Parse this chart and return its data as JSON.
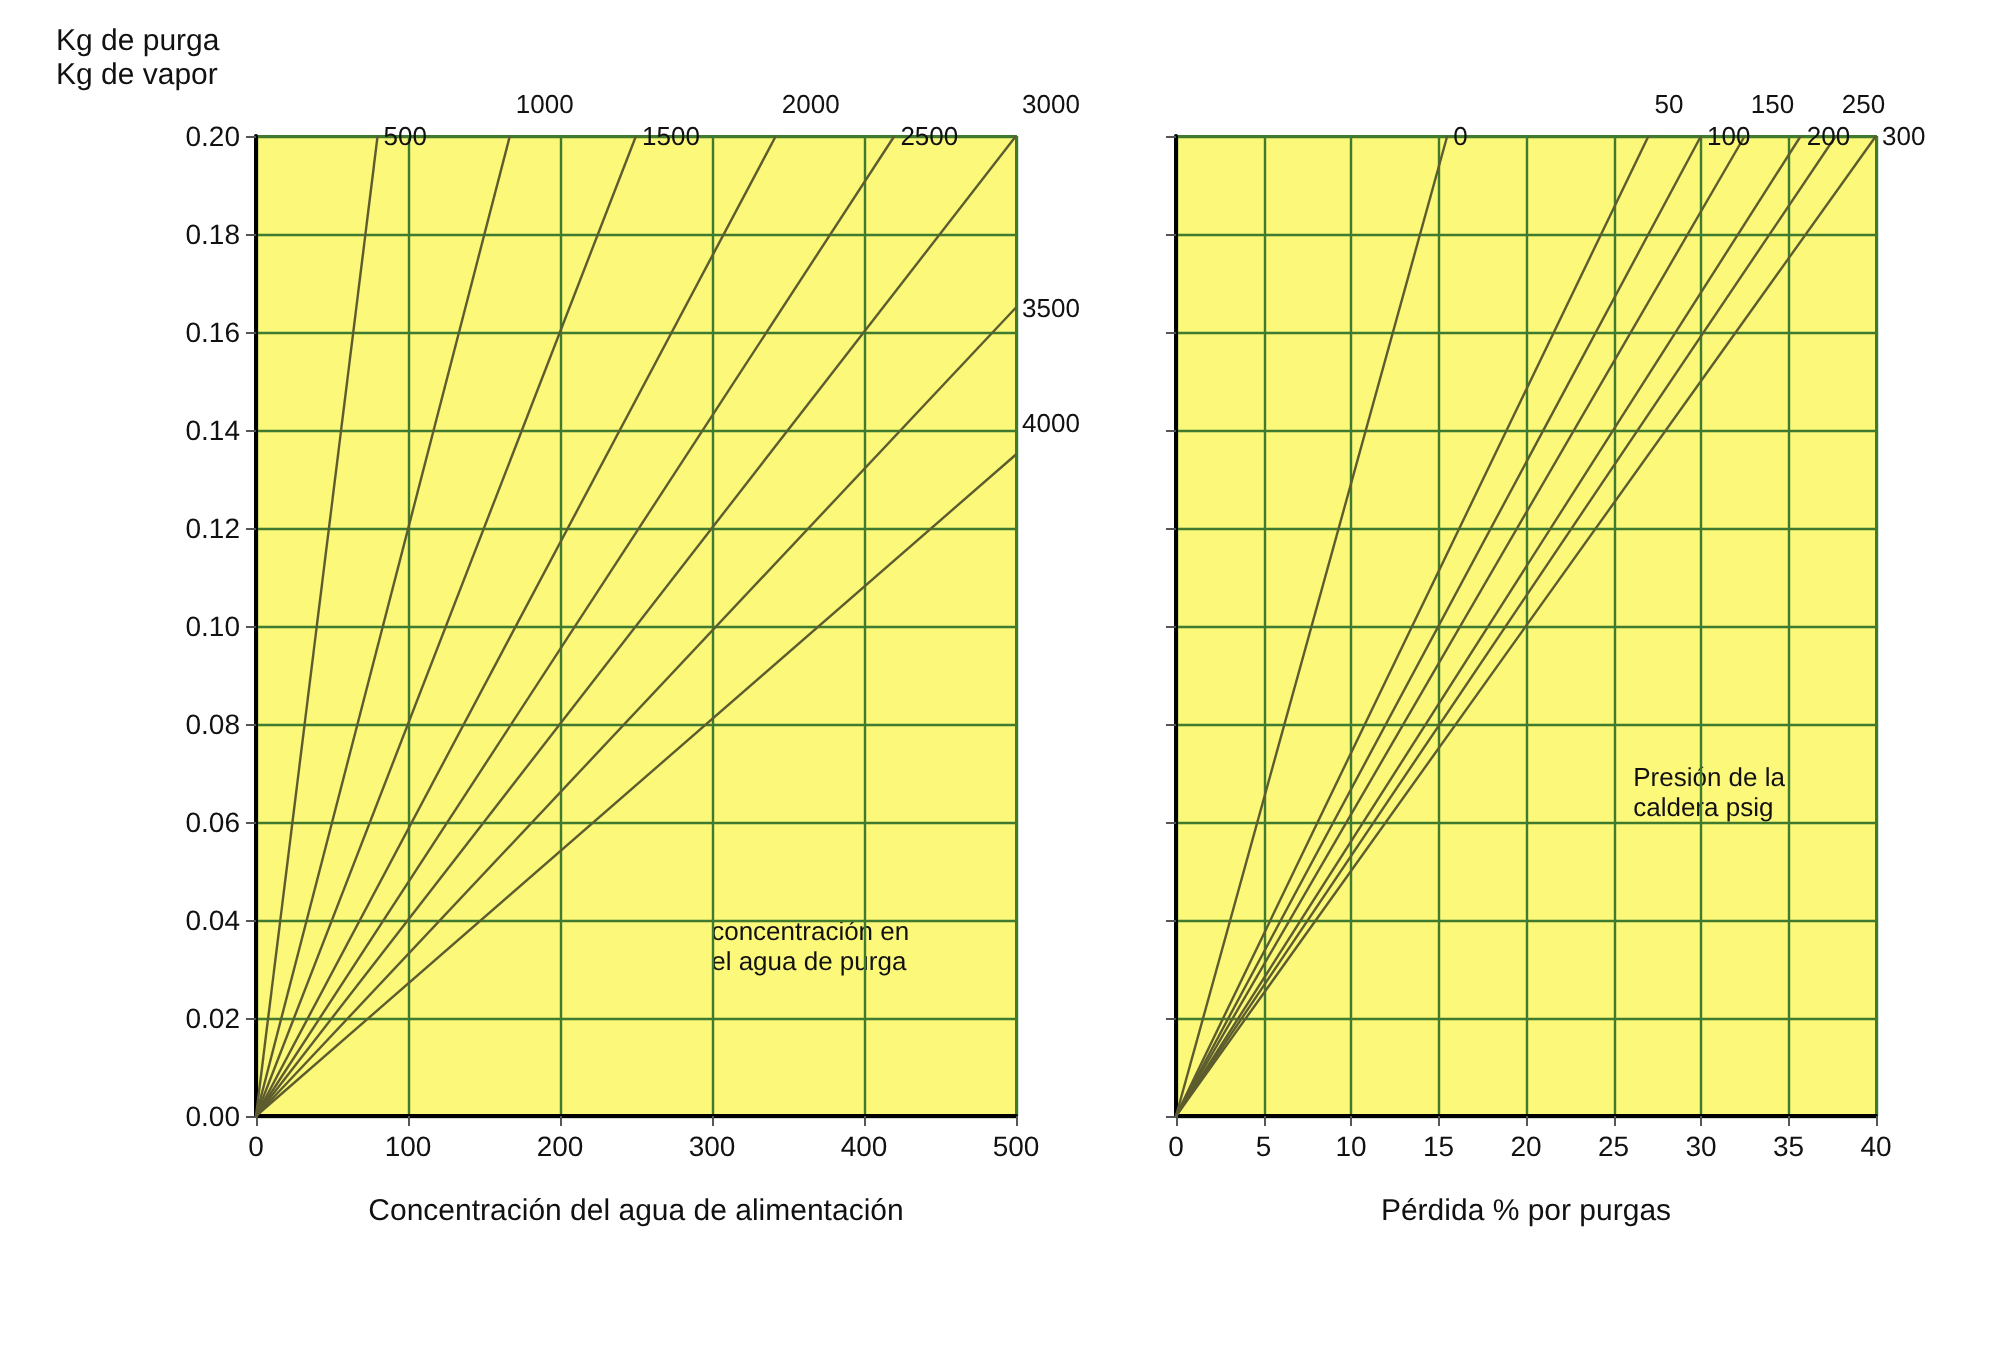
{
  "chart_data": [
    {
      "type": "line",
      "ylabel": "Kg de purga\nKg de vapor",
      "xlabel": "Concentración del agua de alimentación",
      "xlim": [
        0,
        500
      ],
      "xticks": [
        0,
        100,
        200,
        300,
        400,
        500
      ],
      "ylim": [
        0,
        0.2
      ],
      "yticks": [
        {
          "value": 0,
          "label": "0.00"
        },
        {
          "value": 0.02,
          "label": "0.02"
        },
        {
          "value": 0.04,
          "label": "0.04"
        },
        {
          "value": 0.06,
          "label": "0.06"
        },
        {
          "value": 0.08,
          "label": "0.08"
        },
        {
          "value": 0.1,
          "label": "0.10"
        },
        {
          "value": 0.12,
          "label": "0.12"
        },
        {
          "value": 0.14,
          "label": "0.14"
        },
        {
          "value": 0.16,
          "label": "0.16"
        },
        {
          "value": 0.18,
          "label": "0.18"
        },
        {
          "value": 0.2,
          "label": "0.20"
        }
      ],
      "grid": true,
      "marker": "none",
      "annotations": [
        "concentración en\nel agua de purga"
      ],
      "series": [
        {
          "name": "500",
          "color": "#5c5c2e",
          "x": [
            0,
            80
          ],
          "values": [
            0,
            0.2
          ]
        },
        {
          "name": "1000",
          "color": "#5c5c2e",
          "x": [
            0,
            167
          ],
          "values": [
            0,
            0.2
          ]
        },
        {
          "name": "1500",
          "color": "#5c5c2e",
          "x": [
            0,
            250
          ],
          "values": [
            0,
            0.2
          ]
        },
        {
          "name": "2000",
          "color": "#5c5c2e",
          "x": [
            0,
            342
          ],
          "values": [
            0,
            0.2
          ]
        },
        {
          "name": "2500",
          "color": "#5c5c2e",
          "x": [
            0,
            420
          ],
          "values": [
            0,
            0.2
          ]
        },
        {
          "name": "3000",
          "color": "#5c5c2e",
          "x": [
            0,
            500
          ],
          "values": [
            0,
            0.2
          ]
        },
        {
          "name": "3500",
          "color": "#5c5c2e",
          "x": [
            0,
            500
          ],
          "values": [
            0,
            0.165
          ]
        },
        {
          "name": "4000",
          "color": "#5c5c2e",
          "x": [
            0,
            500
          ],
          "values": [
            0,
            0.135
          ]
        }
      ]
    },
    {
      "type": "line",
      "xlabel": "Pérdida % por purgas",
      "xlim": [
        0,
        40
      ],
      "xticks": [
        0,
        5,
        10,
        15,
        20,
        25,
        30,
        35,
        40
      ],
      "ylim": [
        0,
        0.2
      ],
      "yticks": [
        {
          "value": 0,
          "label": null
        },
        {
          "value": 0.02,
          "label": null
        },
        {
          "value": 0.04,
          "label": null
        },
        {
          "value": 0.06,
          "label": null
        },
        {
          "value": 0.08,
          "label": null
        },
        {
          "value": 0.1,
          "label": null
        },
        {
          "value": 0.12,
          "label": null
        },
        {
          "value": 0.14,
          "label": null
        },
        {
          "value": 0.16,
          "label": null
        },
        {
          "value": 0.18,
          "label": null
        },
        {
          "value": 0.2,
          "label": null
        }
      ],
      "tick_labels": "x",
      "grid": true,
      "marker": "none",
      "annotations": [
        "Presión de la\ncaldera psig"
      ],
      "series": [
        {
          "name": "0",
          "color": "#5c5c2e",
          "x": [
            0,
            15.5
          ],
          "values": [
            0,
            0.2
          ]
        },
        {
          "name": "50",
          "color": "#5c5c2e",
          "x": [
            0,
            27
          ],
          "values": [
            0,
            0.2
          ]
        },
        {
          "name": "100",
          "color": "#5c5c2e",
          "x": [
            0,
            30
          ],
          "values": [
            0,
            0.2
          ]
        },
        {
          "name": "150",
          "color": "#5c5c2e",
          "x": [
            0,
            32.5
          ],
          "values": [
            0,
            0.2
          ]
        },
        {
          "name": "200",
          "color": "#5c5c2e",
          "x": [
            0,
            35.7
          ],
          "values": [
            0,
            0.2
          ]
        },
        {
          "name": "250",
          "color": "#5c5c2e",
          "x": [
            0,
            37.7
          ],
          "values": [
            0,
            0.2
          ]
        },
        {
          "name": "300",
          "color": "#5c5c2e",
          "x": [
            0,
            40
          ],
          "values": [
            0,
            0.2
          ]
        }
      ]
    }
  ]
}
